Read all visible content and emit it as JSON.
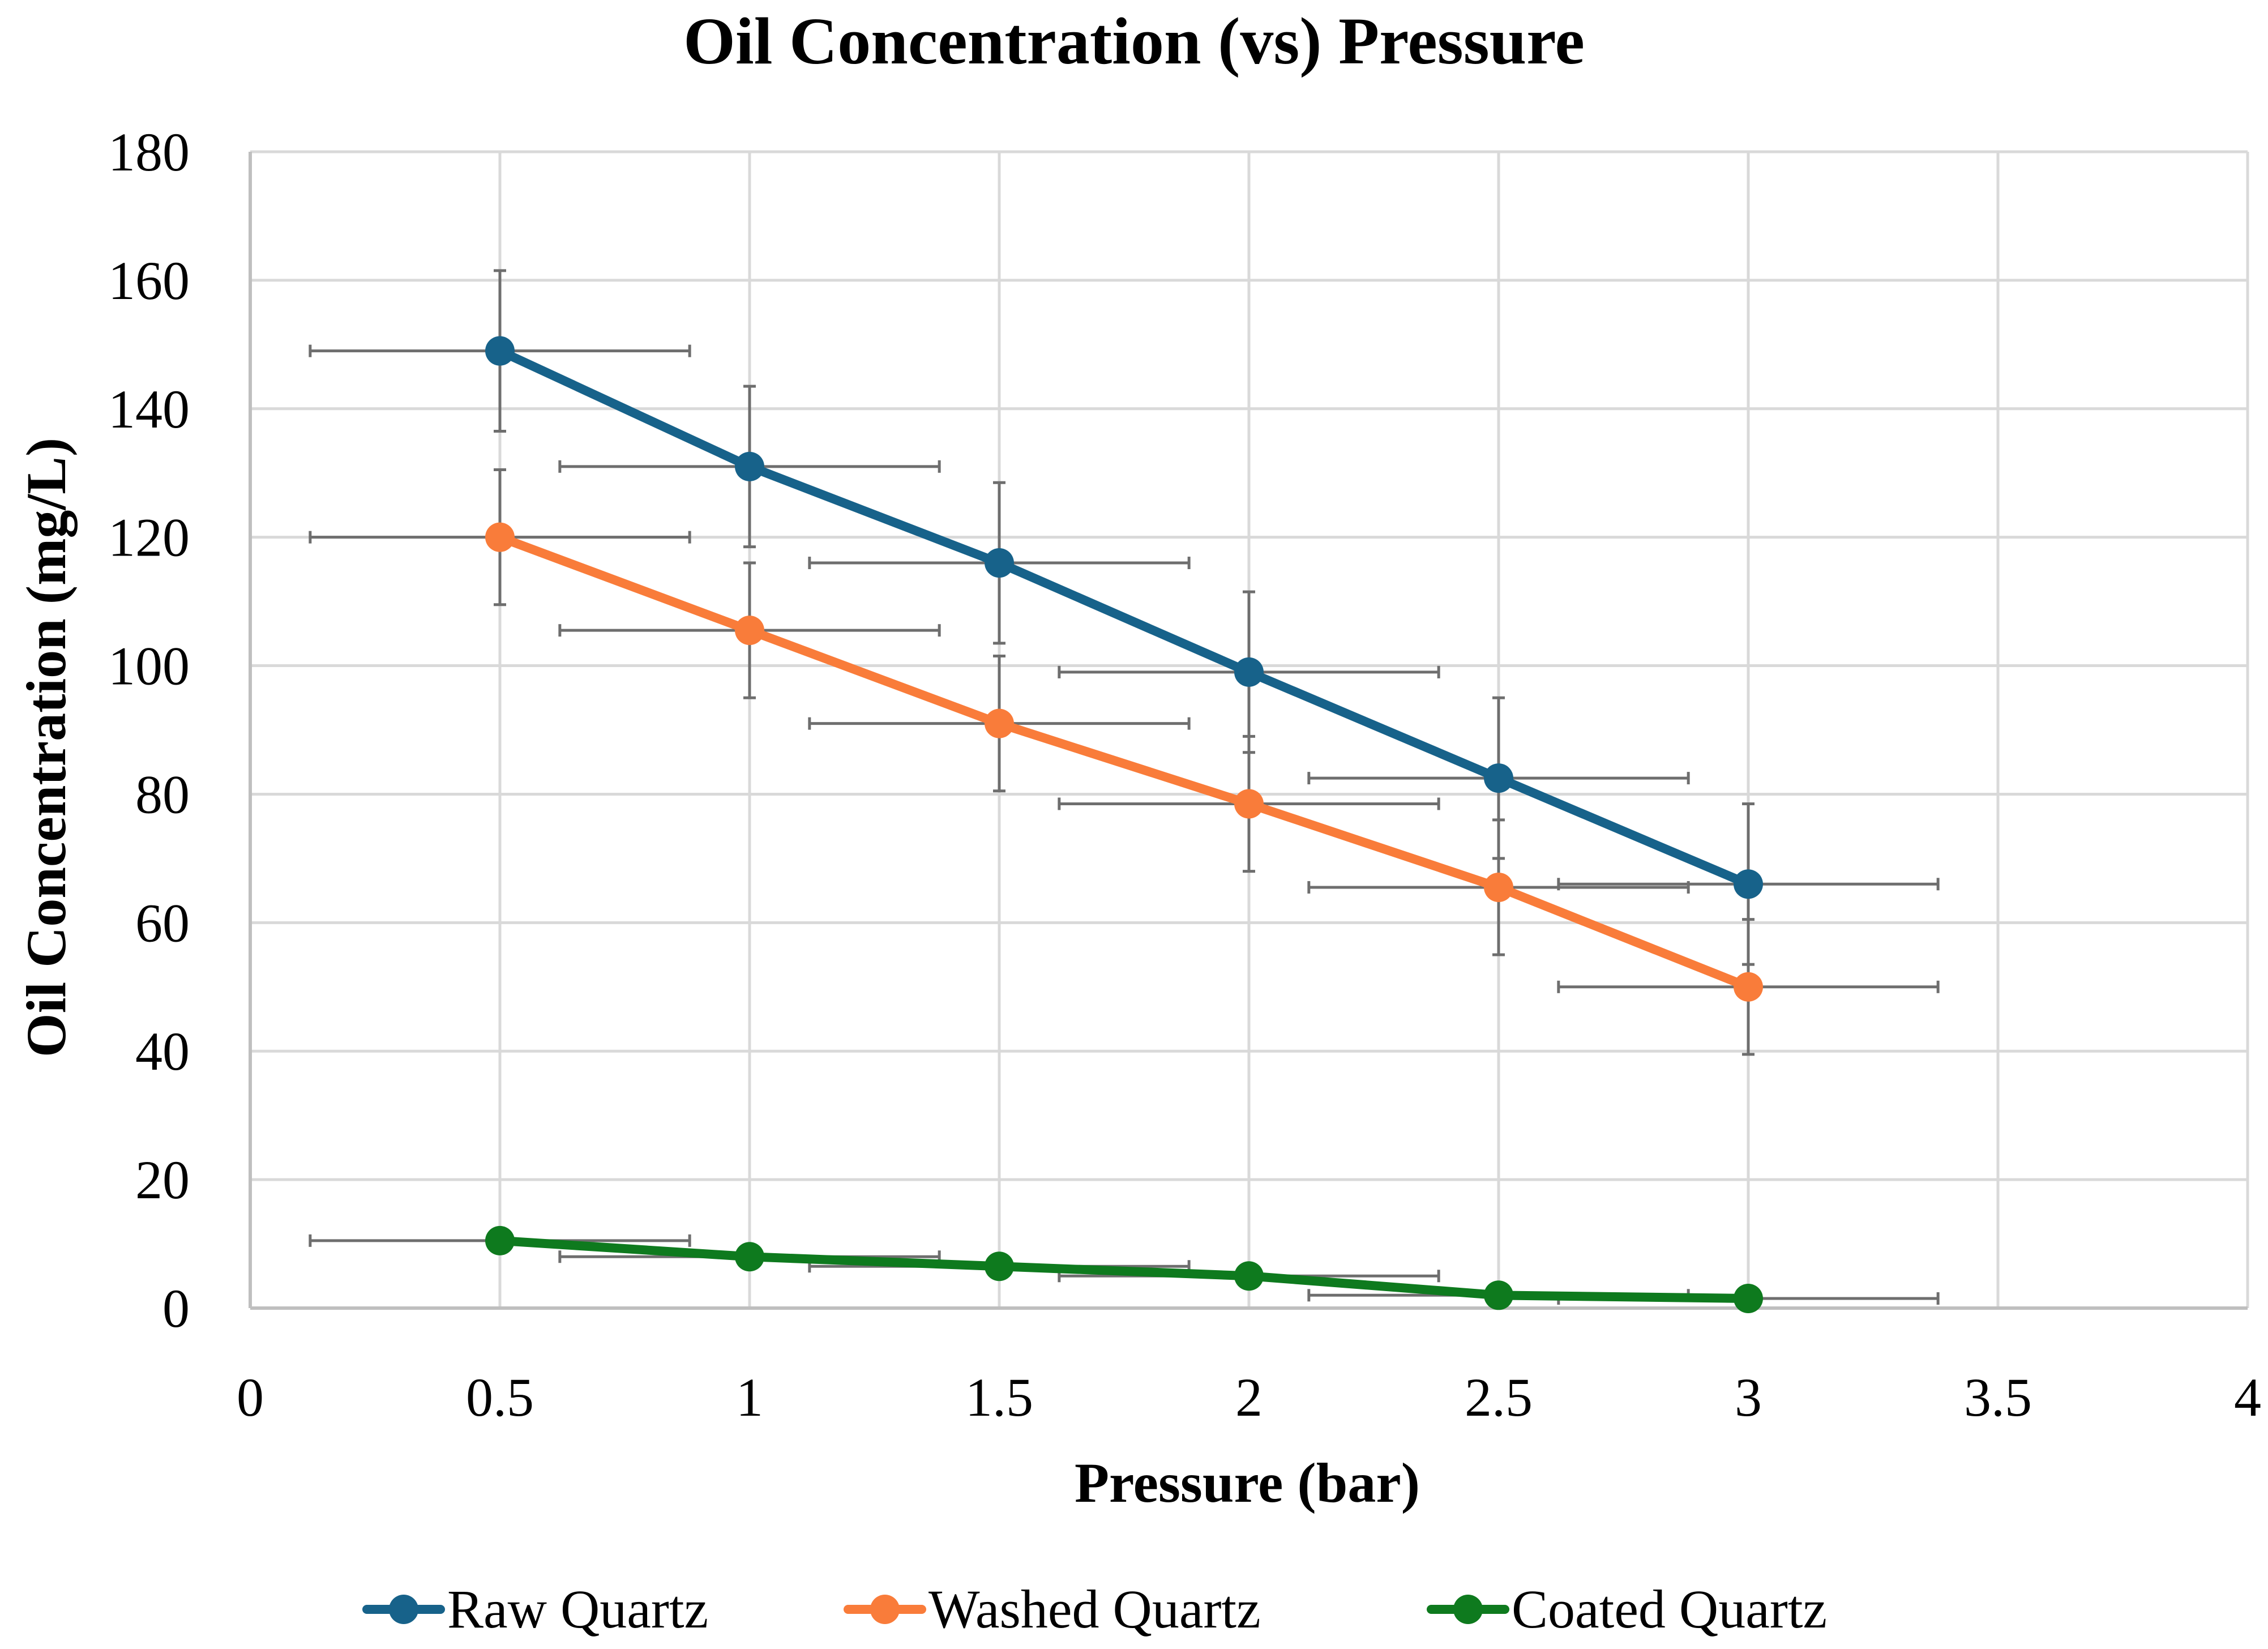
{
  "chart_data": {
    "type": "line",
    "title": "Oil Concentration (vs) Pressure",
    "xlabel": "Pressure (bar)",
    "ylabel": "Oil Concentration (mg/L)",
    "xlim": [
      0,
      4
    ],
    "ylim": [
      0,
      180
    ],
    "xticks": [
      0,
      0.5,
      1,
      1.5,
      2,
      2.5,
      3,
      3.5,
      4
    ],
    "xtick_labels": [
      "0",
      "0.5",
      "1",
      "1.5",
      "2",
      "2.5",
      "3",
      "3.5",
      "4"
    ],
    "yticks": [
      0,
      20,
      40,
      60,
      80,
      100,
      120,
      140,
      160,
      180
    ],
    "ytick_labels": [
      "0",
      "20",
      "40",
      "60",
      "80",
      "100",
      "120",
      "140",
      "160",
      "180"
    ],
    "grid": true,
    "legend_position": "bottom",
    "x_error": 0.38,
    "series": [
      {
        "name": "Raw Quartz",
        "color": "#17628a",
        "x": [
          0.5,
          1,
          1.5,
          2,
          2.5,
          3
        ],
        "y": [
          149,
          131,
          116,
          99,
          82.5,
          66
        ],
        "y_error": [
          12.5,
          12.5,
          12.5,
          12.5,
          12.5,
          12.5
        ]
      },
      {
        "name": "Washed Quartz",
        "color": "#f97c3a",
        "x": [
          0.5,
          1,
          1.5,
          2,
          2.5,
          3
        ],
        "y": [
          120,
          105.5,
          91,
          78.5,
          65.5,
          50
        ],
        "y_error": [
          10.5,
          10.5,
          10.5,
          10.5,
          10.5,
          10.5
        ]
      },
      {
        "name": "Coated Quartz",
        "color": "#0e7a1e",
        "x": [
          0.5,
          1,
          1.5,
          2,
          2.5,
          3
        ],
        "y": [
          10.5,
          8,
          6.5,
          5,
          2,
          1.5
        ],
        "y_error": [
          0,
          0,
          0,
          0,
          0,
          0
        ]
      }
    ]
  }
}
